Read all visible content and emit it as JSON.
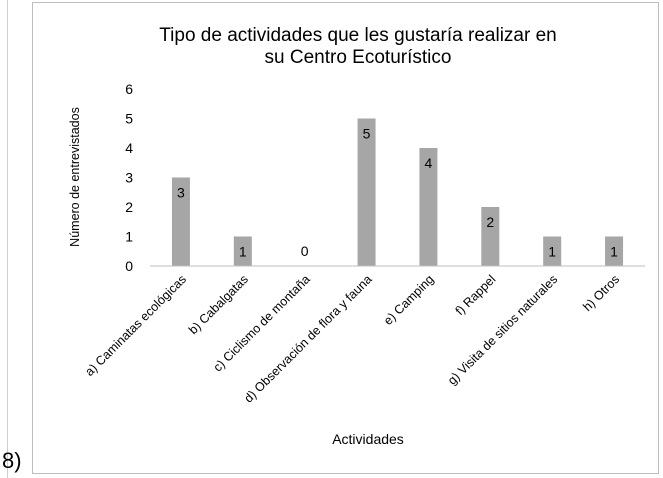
{
  "figure_label": "8)",
  "chart_data": {
    "type": "bar",
    "title_line1": "Tipo de actividades que les gustaría realizar en",
    "title_line2": "su Centro Ecoturístico",
    "xlabel": "Actividades",
    "ylabel": "Número de entrevistados",
    "ylim": [
      0,
      6
    ],
    "yticks": [
      "0",
      "1",
      "2",
      "3",
      "4",
      "5",
      "6"
    ],
    "categories": [
      "a) Caminatas ecológicas",
      "b) Cabalgatas",
      "c) Ciclismo de montaña",
      "d) Observación de flora y fauna",
      "e) Camping",
      "f) Rappel",
      "g) Visita de sitios naturales",
      "h) Otros"
    ],
    "values": [
      3,
      1,
      0,
      5,
      4,
      2,
      1,
      1
    ],
    "data_labels": [
      "3",
      "1",
      "0",
      "5",
      "4",
      "2",
      "1",
      "1"
    ],
    "bar_color": "#a6a6a6",
    "grid": false,
    "legend": "none"
  }
}
